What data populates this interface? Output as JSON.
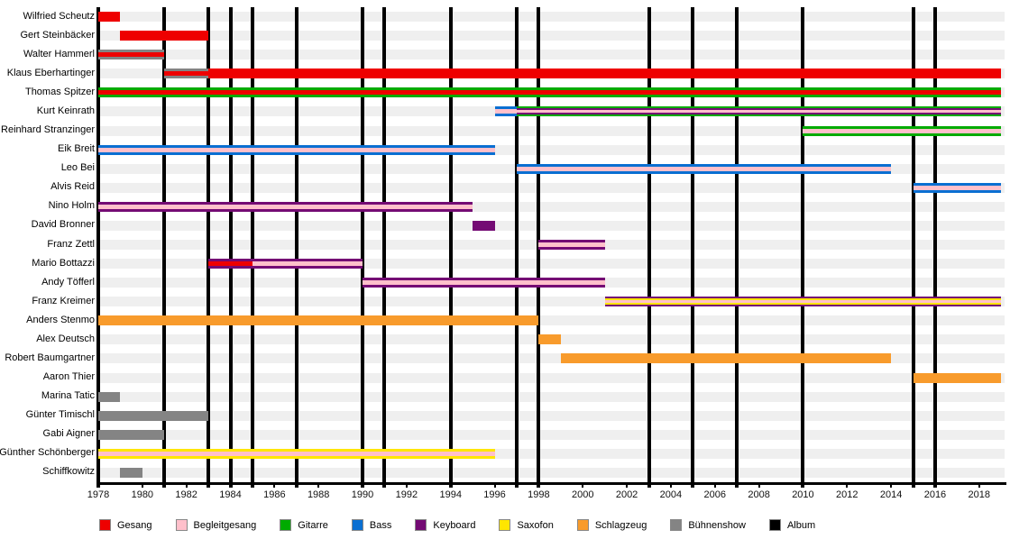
{
  "chart_data": {
    "type": "bar",
    "subtype": "membership-timeline-gantt",
    "title": "",
    "x_axis": {
      "min": 1978,
      "max": 2019,
      "tick_years": [
        1978,
        1980,
        1982,
        1984,
        1986,
        1988,
        1990,
        1992,
        1994,
        1996,
        1998,
        2000,
        2002,
        2004,
        2006,
        2008,
        2010,
        2012,
        2014,
        2016,
        2018
      ]
    },
    "legend_position": "bottom",
    "grid": "vertical-album-lines",
    "track_color": "#efefef",
    "roles": [
      {
        "id": "gesang",
        "label": "Gesang",
        "color": "#ee0000"
      },
      {
        "id": "begleitgesang",
        "label": "Begleitgesang",
        "color": "#ffc0cb"
      },
      {
        "id": "gitarre",
        "label": "Gitarre",
        "color": "#00ab00"
      },
      {
        "id": "bass",
        "label": "Bass",
        "color": "#0a6fd2"
      },
      {
        "id": "keyboard",
        "label": "Keyboard",
        "color": "#740b74"
      },
      {
        "id": "saxofon",
        "label": "Saxofon",
        "color": "#ffe600"
      },
      {
        "id": "schlagzeug",
        "label": "Schlagzeug",
        "color": "#f89b2c"
      },
      {
        "id": "buehnenshow",
        "label": "Bühnenshow",
        "color": "#848484"
      },
      {
        "id": "album",
        "label": "Album",
        "color": "#000000"
      }
    ],
    "album_years": [
      1978,
      1981,
      1983,
      1984,
      1985,
      1987,
      1990,
      1991,
      1994,
      1997,
      1998,
      2003,
      2005,
      2007,
      2010,
      2015,
      2016
    ],
    "members": [
      {
        "name": "Wilfried Scheutz",
        "segments": [
          {
            "start": 1978,
            "end": 1979,
            "roles": [
              "gesang"
            ]
          }
        ]
      },
      {
        "name": "Gert Steinbäcker",
        "segments": [
          {
            "start": 1979,
            "end": 1983,
            "roles": [
              "gesang"
            ]
          }
        ]
      },
      {
        "name": "Walter Hammerl",
        "segments": [
          {
            "start": 1978,
            "end": 1981,
            "roles": [
              "buehnenshow",
              "gesang"
            ]
          }
        ]
      },
      {
        "name": "Klaus Eberhartinger",
        "segments": [
          {
            "start": 1981,
            "end": 1983,
            "roles": [
              "buehnenshow",
              "gesang"
            ]
          },
          {
            "start": 1983,
            "end": 2019,
            "roles": [
              "gesang"
            ]
          }
        ]
      },
      {
        "name": "Thomas Spitzer",
        "segments": [
          {
            "start": 1978,
            "end": 2019,
            "roles": [
              "gitarre",
              "gesang"
            ]
          }
        ]
      },
      {
        "name": "Kurt Keinrath",
        "segments": [
          {
            "start": 1996,
            "end": 1997,
            "roles": [
              "bass",
              "begleitgesang"
            ]
          },
          {
            "start": 1997,
            "end": 2019,
            "roles": [
              "gitarre",
              "keyboard",
              "begleitgesang"
            ]
          }
        ]
      },
      {
        "name": "Reinhard Stranzinger",
        "segments": [
          {
            "start": 2010,
            "end": 2019,
            "roles": [
              "gitarre",
              "begleitgesang"
            ]
          }
        ]
      },
      {
        "name": "Eik Breit",
        "segments": [
          {
            "start": 1978,
            "end": 1996,
            "roles": [
              "bass",
              "begleitgesang"
            ]
          }
        ]
      },
      {
        "name": "Leo Bei",
        "segments": [
          {
            "start": 1997,
            "end": 2014,
            "roles": [
              "bass",
              "begleitgesang"
            ]
          }
        ]
      },
      {
        "name": "Alvis Reid",
        "segments": [
          {
            "start": 2015,
            "end": 2019,
            "roles": [
              "bass",
              "begleitgesang"
            ]
          }
        ]
      },
      {
        "name": "Nino Holm",
        "segments": [
          {
            "start": 1978,
            "end": 1995,
            "roles": [
              "keyboard",
              "begleitgesang"
            ]
          }
        ]
      },
      {
        "name": "David Bronner",
        "segments": [
          {
            "start": 1995,
            "end": 1996,
            "roles": [
              "keyboard"
            ]
          }
        ]
      },
      {
        "name": "Franz Zettl",
        "segments": [
          {
            "start": 1998,
            "end": 2001,
            "roles": [
              "keyboard",
              "begleitgesang"
            ]
          }
        ]
      },
      {
        "name": "Mario Bottazzi",
        "segments": [
          {
            "start": 1983,
            "end": 1985,
            "roles": [
              "keyboard",
              "gesang"
            ]
          },
          {
            "start": 1985,
            "end": 1990,
            "roles": [
              "keyboard",
              "begleitgesang"
            ]
          }
        ]
      },
      {
        "name": "Andy Töfferl",
        "segments": [
          {
            "start": 1990,
            "end": 2001,
            "roles": [
              "keyboard",
              "begleitgesang"
            ]
          }
        ]
      },
      {
        "name": "Franz Kreimer",
        "segments": [
          {
            "start": 2001,
            "end": 2019,
            "roles": [
              "keyboard",
              "saxofon",
              "begleitgesang"
            ]
          }
        ]
      },
      {
        "name": "Anders Stenmo",
        "segments": [
          {
            "start": 1978,
            "end": 1998,
            "roles": [
              "schlagzeug"
            ]
          }
        ]
      },
      {
        "name": "Alex Deutsch",
        "segments": [
          {
            "start": 1998,
            "end": 1999,
            "roles": [
              "schlagzeug"
            ]
          }
        ]
      },
      {
        "name": "Robert Baumgartner",
        "segments": [
          {
            "start": 1999,
            "end": 2014,
            "roles": [
              "schlagzeug"
            ]
          }
        ]
      },
      {
        "name": "Aaron Thier",
        "segments": [
          {
            "start": 2015,
            "end": 2019,
            "roles": [
              "schlagzeug"
            ]
          }
        ]
      },
      {
        "name": "Marina Tatic",
        "segments": [
          {
            "start": 1978,
            "end": 1979,
            "roles": [
              "buehnenshow"
            ]
          }
        ]
      },
      {
        "name": "Günter Timischl",
        "segments": [
          {
            "start": 1978,
            "end": 1983,
            "roles": [
              "buehnenshow"
            ]
          }
        ]
      },
      {
        "name": "Gabi Aigner",
        "segments": [
          {
            "start": 1978,
            "end": 1981,
            "roles": [
              "buehnenshow"
            ]
          }
        ]
      },
      {
        "name": "Günther Schönberger",
        "segments": [
          {
            "start": 1978,
            "end": 1996,
            "roles": [
              "saxofon",
              "begleitgesang"
            ]
          }
        ]
      },
      {
        "name": "Schiffkowitz",
        "segments": [
          {
            "start": 1979,
            "end": 1980,
            "roles": [
              "buehnenshow"
            ]
          }
        ]
      }
    ]
  }
}
